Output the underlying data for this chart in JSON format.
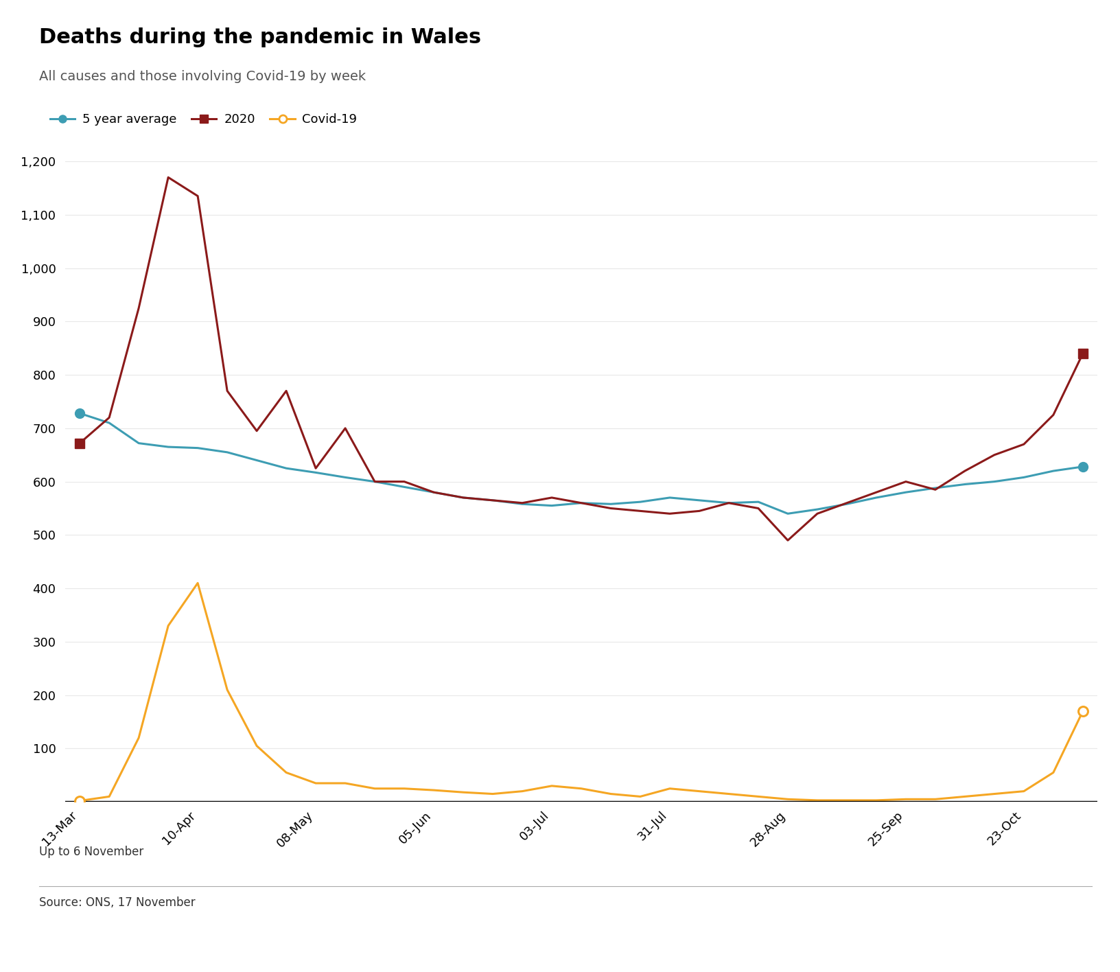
{
  "title": "Deaths during the pandemic in Wales",
  "subtitle": "All causes and those involving Covid-19 by week",
  "caption": "Up to 6 November",
  "source": "Source: ONS, 17 November",
  "background_color": "#ffffff",
  "x_labels": [
    "13-Mar",
    "10-Apr",
    "08-May",
    "05-Jun",
    "03-Jul",
    "31-Jul",
    "28-Aug",
    "25-Sep",
    "23-Oct"
  ],
  "five_year_avg": [
    728,
    710,
    672,
    665,
    663,
    655,
    640,
    625,
    617,
    608,
    600,
    590,
    580,
    570,
    565,
    558,
    555,
    560,
    558,
    562,
    570,
    565,
    560,
    562,
    540,
    548,
    558,
    570,
    580,
    588,
    595,
    600,
    608,
    620,
    628
  ],
  "deaths_2020": [
    672,
    720,
    925,
    1170,
    1135,
    770,
    695,
    770,
    625,
    700,
    600,
    600,
    580,
    570,
    565,
    560,
    570,
    560,
    550,
    545,
    540,
    545,
    560,
    550,
    490,
    540,
    560,
    580,
    600,
    585,
    620,
    650,
    670,
    725,
    840
  ],
  "covid_19": [
    2,
    10,
    120,
    330,
    410,
    210,
    105,
    55,
    35,
    35,
    25,
    25,
    22,
    18,
    15,
    20,
    30,
    25,
    15,
    10,
    25,
    20,
    15,
    10,
    5,
    3,
    3,
    3,
    5,
    5,
    10,
    15,
    20,
    55,
    170
  ],
  "avg_color": "#3d9db3",
  "deaths_2020_color": "#8b1a1a",
  "covid_color": "#f5a623",
  "ylim": [
    0,
    1220
  ],
  "yticks": [
    0,
    100,
    200,
    300,
    400,
    500,
    600,
    700,
    800,
    900,
    1000,
    1100,
    1200
  ],
  "x_tick_positions": [
    0,
    4,
    8,
    12,
    16,
    20,
    24,
    28,
    32
  ]
}
